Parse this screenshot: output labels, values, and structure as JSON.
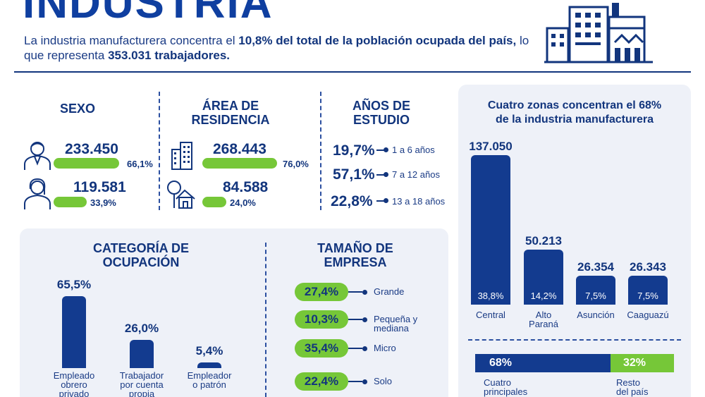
{
  "header": {
    "title": "INDUSTRIA",
    "subtitle_pre": "La industria manufacturera concentra el ",
    "subtitle_b1": "10,8% del total de la población ocupada del país,",
    "subtitle_mid": " lo que representa ",
    "subtitle_b2": "353.031 trabajadores."
  },
  "sexo": {
    "title": "SEXO",
    "items": [
      {
        "value": "233.450",
        "pct": "66,1%",
        "share": 0.661,
        "icon": "man-icon"
      },
      {
        "value": "119.581",
        "pct": "33,9%",
        "share": 0.339,
        "icon": "woman-icon"
      }
    ]
  },
  "area": {
    "title_l1": "ÁREA DE",
    "title_l2": "RESIDENCIA",
    "items": [
      {
        "value": "268.443",
        "pct": "76,0%",
        "share": 0.76,
        "icon": "building-icon"
      },
      {
        "value": "84.588",
        "pct": "24,0%",
        "share": 0.24,
        "icon": "house-tree-icon"
      }
    ]
  },
  "estudio": {
    "title_l1": "AÑOS DE",
    "title_l2": "ESTUDIO",
    "items": [
      {
        "pct": "19,7%",
        "label": "1 a 6 años"
      },
      {
        "pct": "57,1%",
        "label": "7 a 12 años"
      },
      {
        "pct": "22,8%",
        "label": "13 a 18 años"
      }
    ]
  },
  "colors": {
    "navy": "#133b8f",
    "green": "#76c738",
    "panel": "#eef1f8"
  },
  "chart_data": [
    {
      "type": "bar",
      "title": "CATEGORÍA DE OCUPACIÓN",
      "title_l1": "CATEGORÍA DE",
      "title_l2": "OCUPACIÓN",
      "categories": [
        "Empleado obrero privado",
        "Trabajador por cuenta propia",
        "Empleador o patrón"
      ],
      "cat_lines": [
        [
          "Empleado",
          "obrero",
          "privado"
        ],
        [
          "Trabajador",
          "por cuenta",
          "propia"
        ],
        [
          "Empleador",
          "o patrón"
        ]
      ],
      "values": [
        65.5,
        26.0,
        5.4
      ],
      "labels": [
        "65,5%",
        "26,0%",
        "5,4%"
      ],
      "ylim": [
        0,
        65.5
      ]
    },
    {
      "type": "bar",
      "title": "TAMAÑO DE EMPRESA",
      "title_l1": "TAMAÑO DE",
      "title_l2": "EMPRESA",
      "categories": [
        "Grande",
        "Pequeña y mediana",
        "Micro",
        "Solo"
      ],
      "cat_lines": [
        [
          "Grande"
        ],
        [
          "Pequeña y",
          "mediana"
        ],
        [
          "Micro"
        ],
        [
          "Solo"
        ]
      ],
      "values": [
        27.4,
        10.3,
        35.4,
        22.4
      ],
      "labels": [
        "27,4%",
        "10,3%",
        "35,4%",
        "22,4%"
      ]
    },
    {
      "type": "bar",
      "title": "Cuatro zonas concentran el 68% de la industria manufacturera",
      "title_l1": "Cuatro zonas concentran el 68%",
      "title_l2": "de la industria manufacturera",
      "categories": [
        "Central",
        "Alto Paraná",
        "Asunción",
        "Caaguazú"
      ],
      "cat_lines": [
        [
          "Central"
        ],
        [
          "Alto",
          "Paraná"
        ],
        [
          "Asunción"
        ],
        [
          "Caaguazú"
        ]
      ],
      "values": [
        137050,
        50213,
        26354,
        26343
      ],
      "labels": [
        "137.050",
        "50.213",
        "26.354",
        "26.343"
      ],
      "shares": [
        "38,8%",
        "14,2%",
        "7,5%",
        "7,5%"
      ],
      "ylim": [
        0,
        137050
      ]
    },
    {
      "type": "bar",
      "title": "",
      "categories": [
        "Cuatro principales",
        "Resto del país"
      ],
      "cat_lines": [
        [
          "Cuatro",
          "principales"
        ],
        [
          "Resto",
          "del país"
        ]
      ],
      "values": [
        68,
        32
      ],
      "labels": [
        "68%",
        "32%"
      ]
    }
  ]
}
